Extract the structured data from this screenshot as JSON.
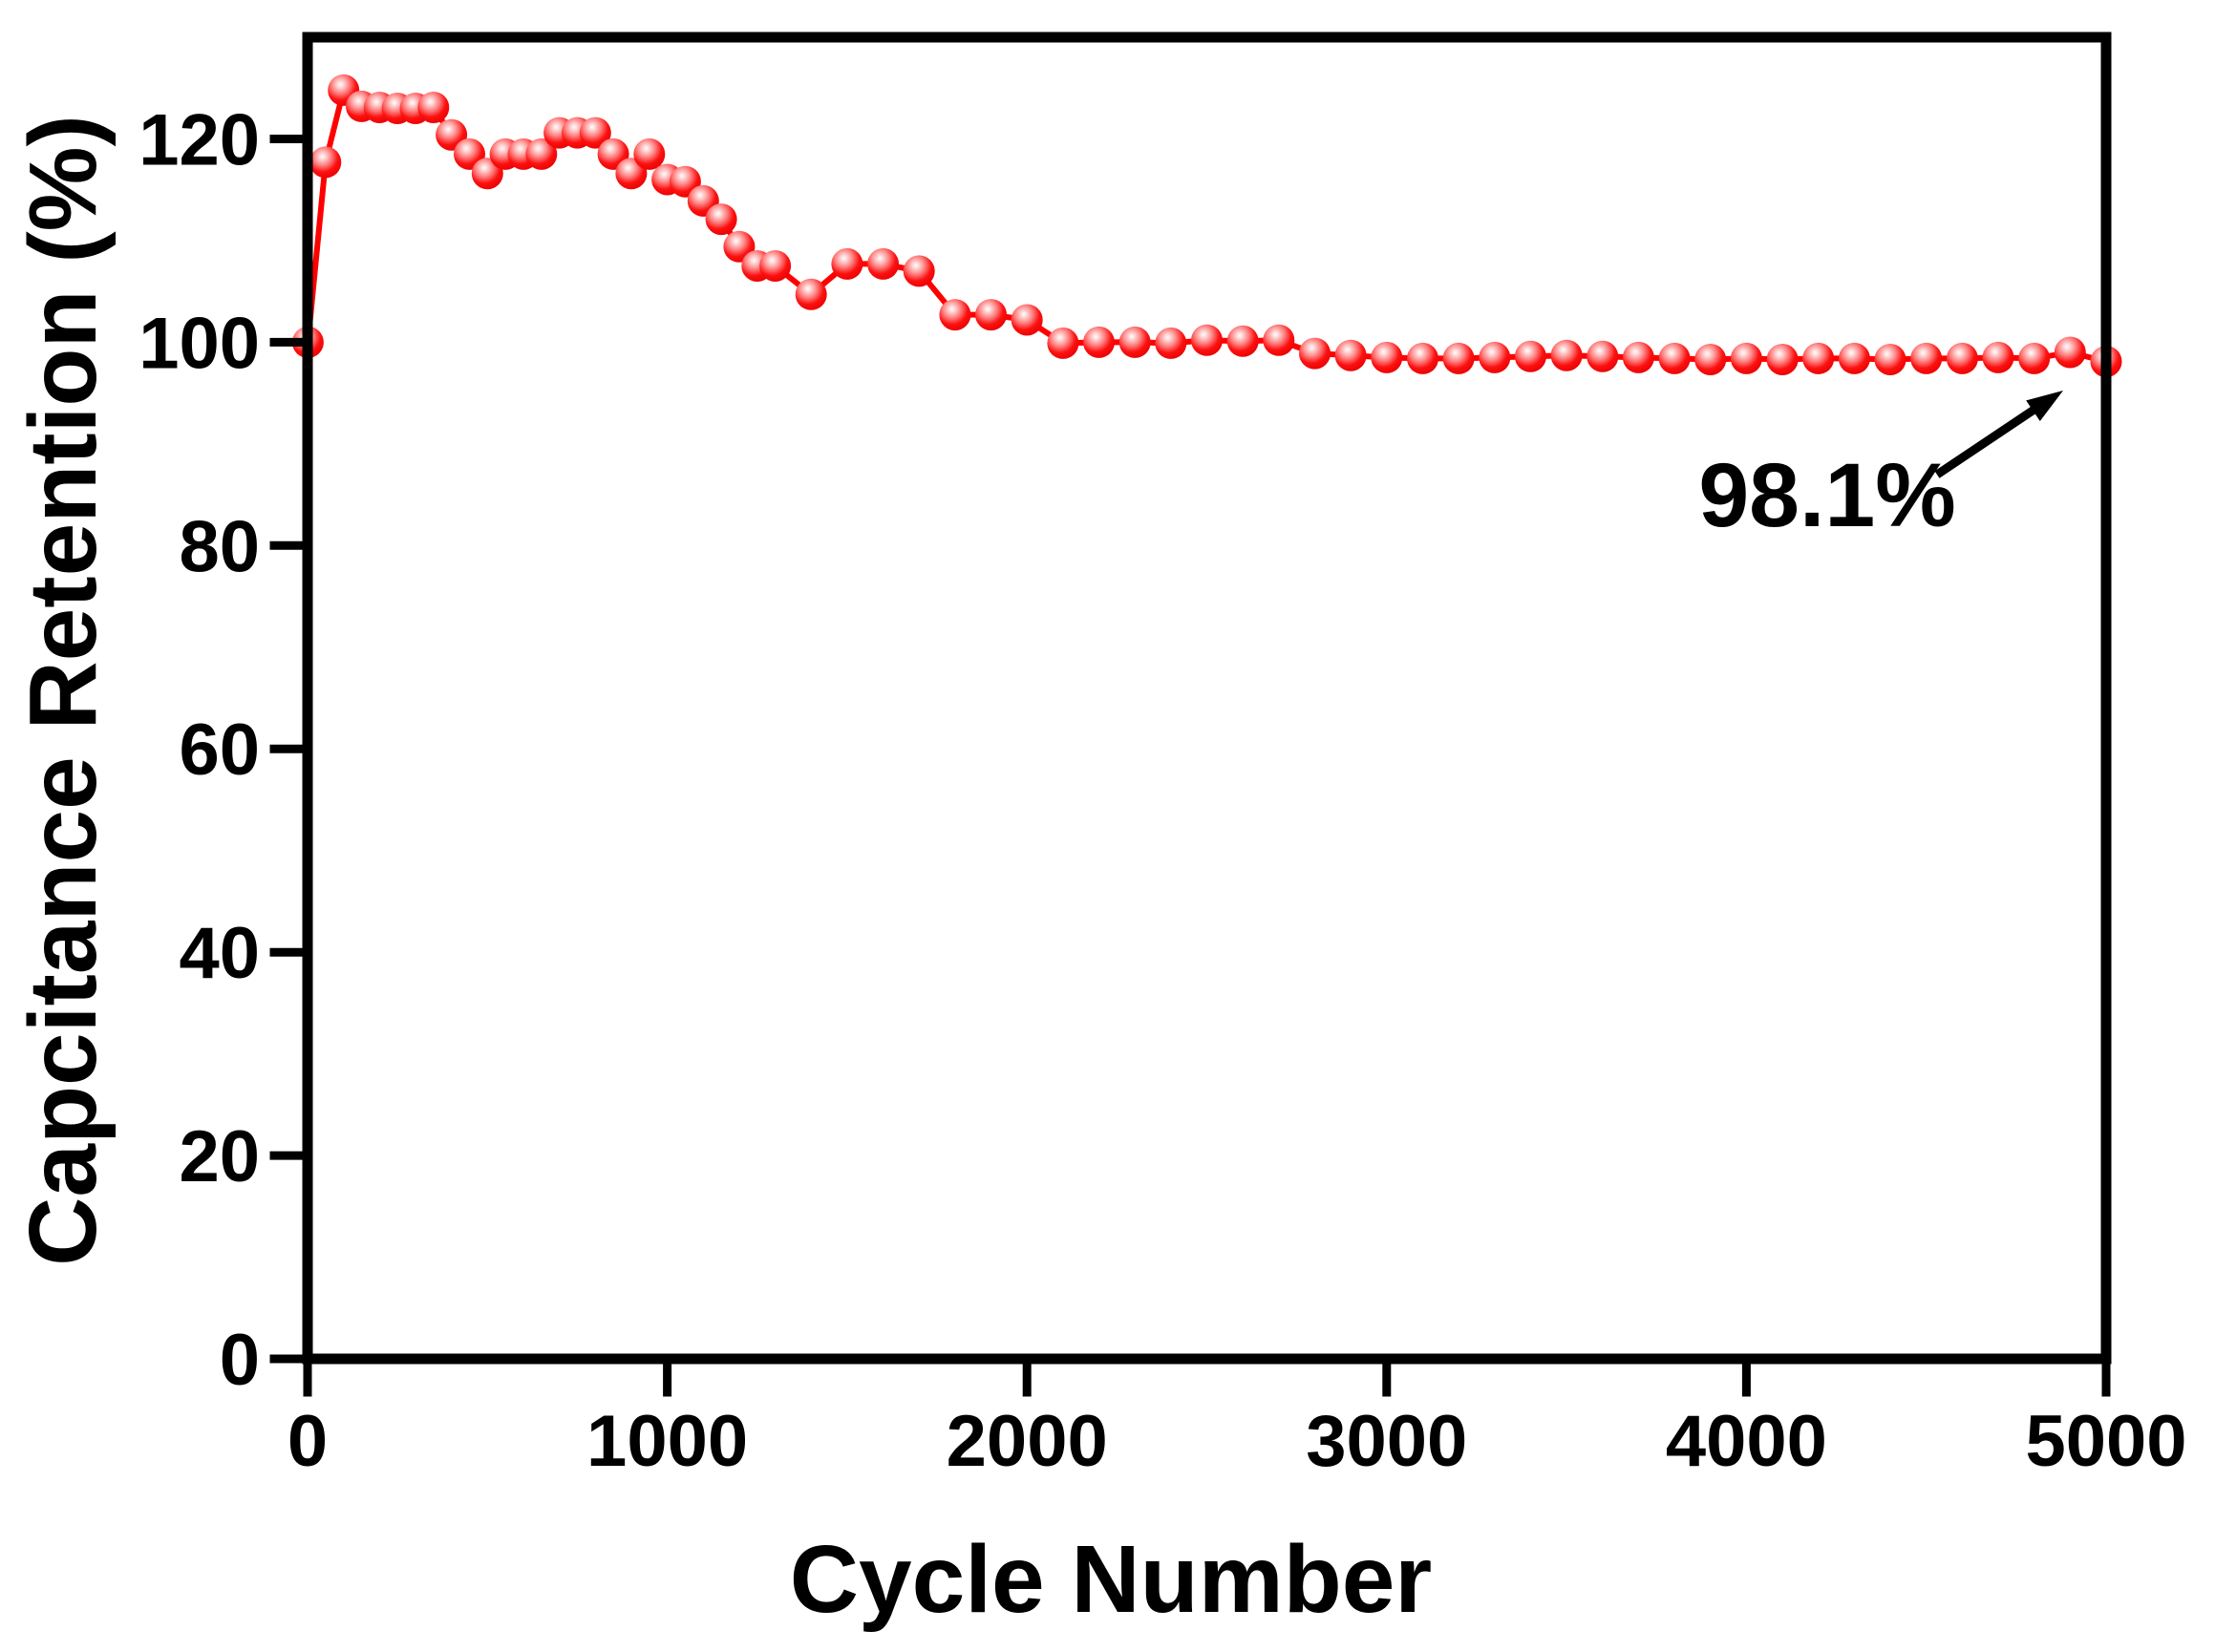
{
  "figure": {
    "background": "#ffffff"
  },
  "chart_data": {
    "type": "line",
    "subtype": "line+sphere-symbol",
    "title": "",
    "xlabel": "Cycle Number",
    "ylabel": "Capcitance Retention (%)",
    "xlim": [
      0,
      5000
    ],
    "ylim": [
      0,
      130
    ],
    "xticks": [
      0,
      1000,
      2000,
      3000,
      4000,
      5000
    ],
    "yticks": [
      0,
      20,
      40,
      60,
      80,
      100,
      120
    ],
    "grid": false,
    "legend_position": "none",
    "frame": "full-box",
    "tick_direction": "out",
    "axis_color": "#000000",
    "series": [
      {
        "name": "capacitance-retention",
        "color": "#ff0000",
        "marker": "sphere",
        "points": [
          [
            1,
            100.0
          ],
          [
            50,
            117.7
          ],
          [
            100,
            124.8
          ],
          [
            150,
            123.2
          ],
          [
            200,
            123.1
          ],
          [
            250,
            123.0
          ],
          [
            300,
            123.0
          ],
          [
            350,
            123.1
          ],
          [
            400,
            120.4
          ],
          [
            450,
            118.5
          ],
          [
            500,
            116.6
          ],
          [
            550,
            118.5
          ],
          [
            600,
            118.5
          ],
          [
            650,
            118.5
          ],
          [
            700,
            120.6
          ],
          [
            750,
            120.6
          ],
          [
            800,
            120.6
          ],
          [
            850,
            118.5
          ],
          [
            900,
            116.6
          ],
          [
            950,
            118.5
          ],
          [
            1000,
            116.0
          ],
          [
            1050,
            115.8
          ],
          [
            1100,
            113.9
          ],
          [
            1150,
            112.1
          ],
          [
            1200,
            109.4
          ],
          [
            1250,
            107.5
          ],
          [
            1300,
            107.5
          ],
          [
            1400,
            104.7
          ],
          [
            1500,
            107.7
          ],
          [
            1600,
            107.7
          ],
          [
            1700,
            107.0
          ],
          [
            1800,
            102.7
          ],
          [
            1900,
            102.7
          ],
          [
            2000,
            102.2
          ],
          [
            2100,
            99.9
          ],
          [
            2200,
            100.0
          ],
          [
            2300,
            100.0
          ],
          [
            2400,
            99.9
          ],
          [
            2500,
            100.2
          ],
          [
            2600,
            100.1
          ],
          [
            2700,
            100.2
          ],
          [
            2800,
            98.9
          ],
          [
            2900,
            98.7
          ],
          [
            3000,
            98.5
          ],
          [
            3100,
            98.4
          ],
          [
            3200,
            98.4
          ],
          [
            3300,
            98.5
          ],
          [
            3400,
            98.6
          ],
          [
            3500,
            98.7
          ],
          [
            3600,
            98.6
          ],
          [
            3700,
            98.5
          ],
          [
            3800,
            98.4
          ],
          [
            3900,
            98.3
          ],
          [
            4000,
            98.4
          ],
          [
            4100,
            98.3
          ],
          [
            4200,
            98.4
          ],
          [
            4300,
            98.4
          ],
          [
            4400,
            98.3
          ],
          [
            4500,
            98.4
          ],
          [
            4600,
            98.4
          ],
          [
            4700,
            98.5
          ],
          [
            4800,
            98.4
          ],
          [
            4900,
            99.0
          ],
          [
            5000,
            98.1
          ]
        ]
      }
    ],
    "annotation": {
      "text": "98.1%",
      "target_point": [
        5000,
        98.1
      ]
    }
  }
}
